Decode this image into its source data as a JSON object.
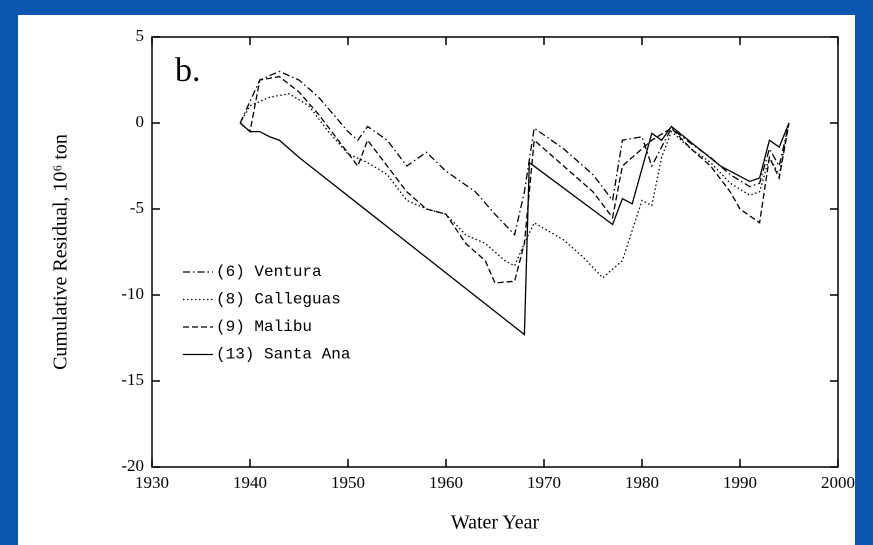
{
  "chart_data": {
    "type": "line",
    "panel_label": "b.",
    "x_label": "Water Year",
    "y_label": "Cumulative Residual, 10⁶ ton",
    "xlim": [
      1930,
      2000
    ],
    "xticks": [
      1930,
      1940,
      1950,
      1960,
      1970,
      1980,
      1990,
      2000
    ],
    "ylim": [
      -20,
      5
    ],
    "yticks": [
      -20,
      -15,
      -10,
      -5,
      0,
      5
    ],
    "legend": "lower left",
    "series": [
      {
        "name": "(6) Ventura",
        "color": "#000000",
        "linestyle": "dashdot",
        "x": [
          1939,
          1941,
          1943,
          1945,
          1947,
          1950,
          1951,
          1952,
          1954,
          1956,
          1958,
          1960,
          1963,
          1965,
          1967,
          1968,
          1969,
          1972,
          1975,
          1977,
          1978,
          1980,
          1981,
          1983,
          1985,
          1987,
          1989,
          1991,
          1992,
          1993,
          1994,
          1995
        ],
        "values": [
          0,
          2.5,
          3,
          2.5,
          1.5,
          -0.5,
          -1,
          -0.2,
          -1,
          -2.5,
          -1.7,
          -2.8,
          -4,
          -5.3,
          -6.5,
          -4,
          -0.3,
          -1.5,
          -3,
          -4.5,
          -1,
          -0.8,
          -2.5,
          -0.3,
          -1.2,
          -2,
          -3,
          -3.7,
          -3.5,
          -1.5,
          -2.5,
          0
        ]
      },
      {
        "name": "(8) Calleguas",
        "color": "#000000",
        "linestyle": "dotted",
        "x": [
          1939,
          1940,
          1942,
          1944,
          1946,
          1948,
          1950,
          1952,
          1954,
          1956,
          1958,
          1960,
          1962,
          1964,
          1966,
          1967,
          1968,
          1969,
          1972,
          1974,
          1976,
          1978,
          1980,
          1981,
          1982,
          1983,
          1985,
          1987,
          1989,
          1991,
          1992,
          1993,
          1994,
          1995
        ],
        "values": [
          0,
          1,
          1.5,
          1.7,
          1,
          -0.5,
          -1.8,
          -2.3,
          -3,
          -4.5,
          -5,
          -5.3,
          -6.5,
          -7,
          -8,
          -8.3,
          -7,
          -5.8,
          -6.8,
          -7.8,
          -9,
          -8,
          -4.5,
          -4.8,
          -2,
          -0.5,
          -1.5,
          -2.3,
          -3.5,
          -4.2,
          -4,
          -2,
          -3,
          0
        ]
      },
      {
        "name": "(9) Malibu",
        "color": "#000000",
        "linestyle": "dashed",
        "x": [
          1939,
          1940,
          1941,
          1943,
          1945,
          1947,
          1949,
          1951,
          1952,
          1954,
          1956,
          1958,
          1960,
          1962,
          1964,
          1965,
          1967,
          1968,
          1969,
          1972,
          1975,
          1977,
          1978,
          1980,
          1981,
          1983,
          1985,
          1987,
          1989,
          1990,
          1992,
          1993,
          1994,
          1995
        ],
        "values": [
          0,
          -0.5,
          2.5,
          2.7,
          1.8,
          0.5,
          -1,
          -2.5,
          -1,
          -2.5,
          -4,
          -5,
          -5.3,
          -7,
          -8,
          -9.3,
          -9.2,
          -7,
          -1,
          -2.5,
          -4,
          -5.5,
          -2.5,
          -1.5,
          -1,
          -0.3,
          -1.5,
          -2.5,
          -4,
          -5,
          -5.8,
          -2,
          -3.2,
          0
        ]
      },
      {
        "name": "(13) Santa Ana",
        "color": "#000000",
        "linestyle": "solid",
        "x": [
          1939,
          1940,
          1941,
          1942,
          1943,
          1945,
          1968,
          1968.5,
          1977,
          1978,
          1979,
          1981,
          1982,
          1983,
          1988,
          1991,
          1992,
          1993,
          1994,
          1995
        ],
        "values": [
          0,
          -0.5,
          -0.5,
          -0.8,
          -1,
          -2,
          -12.3,
          -2.3,
          -5.9,
          -4.4,
          -4.7,
          -0.6,
          -1,
          -0.2,
          -2.5,
          -3.4,
          -3.2,
          -1,
          -1.4,
          0
        ]
      }
    ]
  }
}
